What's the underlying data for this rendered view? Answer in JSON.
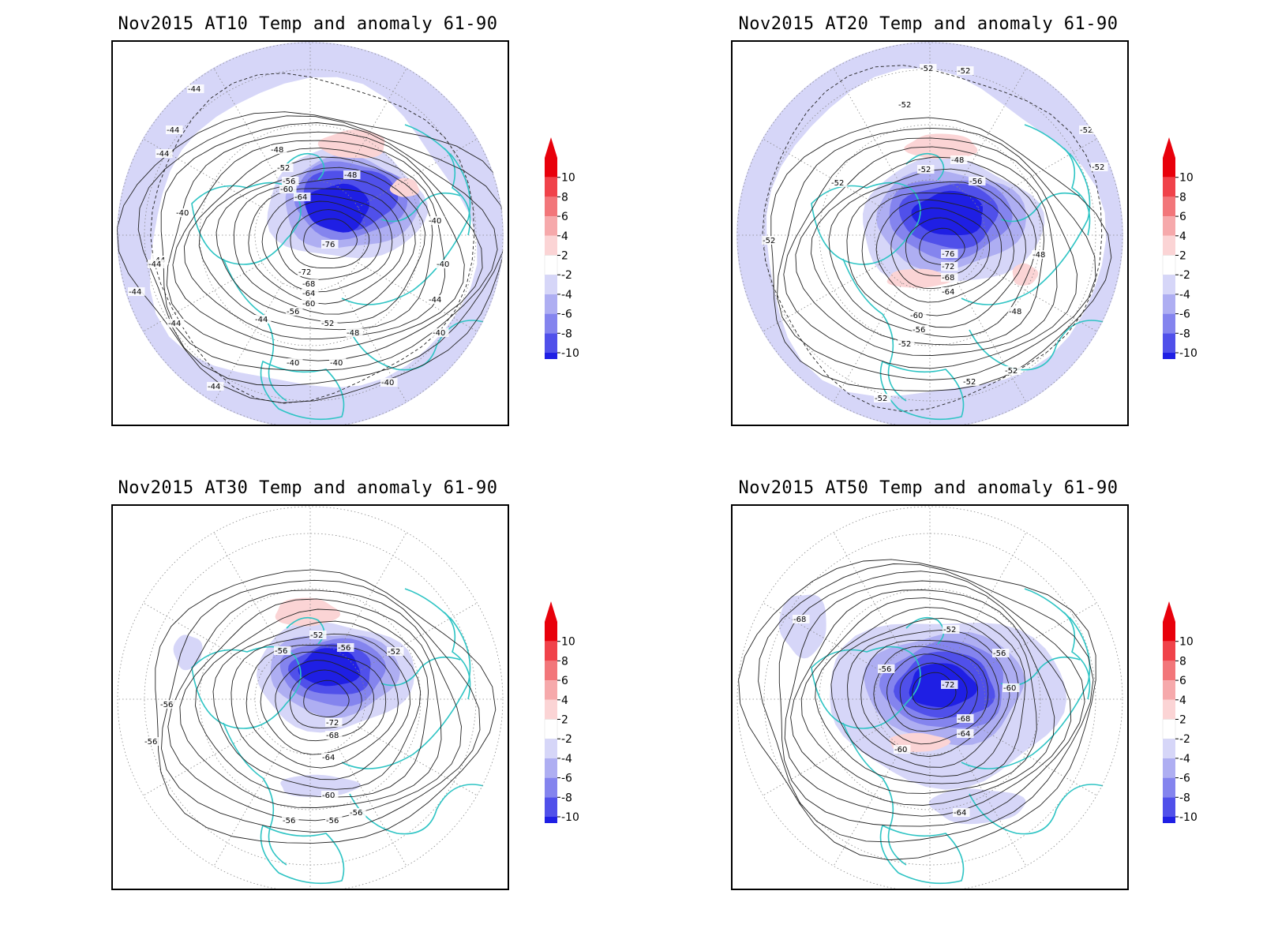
{
  "figure": {
    "panels": [
      {
        "title": "Nov2015 AT10 Temp and anomaly 61-90",
        "contour_labels": [
          "-44",
          "-44",
          "-44",
          "-44",
          "-48",
          "-52",
          "-56",
          "-60",
          "-64",
          "-48",
          "-76",
          "-40",
          "-40",
          "-40",
          "-72",
          "-68",
          "-64",
          "-60",
          "-56",
          "-52",
          "-48",
          "-44",
          "-40",
          "-40",
          "-40",
          "-40",
          "-44",
          "-44",
          "-44",
          "-44",
          "-44"
        ]
      },
      {
        "title": "Nov2015 AT20 Temp and anomaly 61-90",
        "contour_labels": [
          "-52",
          "-52",
          "-52",
          "-52",
          "-52",
          "-48",
          "-52",
          "-56",
          "-52",
          "-52",
          "-76",
          "-72",
          "-68",
          "-64",
          "-60",
          "-56",
          "-52",
          "-48",
          "-48",
          "-52",
          "-52",
          "-52"
        ]
      },
      {
        "title": "Nov2015 AT30 Temp and anomaly 61-90",
        "contour_labels": [
          "-52",
          "-56",
          "-56",
          "-52",
          "-56",
          "-72",
          "-68",
          "-64",
          "-60",
          "-56",
          "-56",
          "-56",
          "-56"
        ]
      },
      {
        "title": "Nov2015 AT50 Temp and anomaly 61-90",
        "contour_labels": [
          "-68",
          "-52",
          "-56",
          "-56",
          "-72",
          "-60",
          "-68",
          "-64",
          "-60",
          "-64"
        ]
      }
    ],
    "colorbar": {
      "labels": [
        "10",
        "8",
        "6",
        "4",
        "2",
        "-2",
        "-4",
        "-6",
        "-8",
        "-10"
      ],
      "colors": [
        "#e8000b",
        "#f0424a",
        "#f2767a",
        "#f6a9ab",
        "#fbd4d5",
        "#ffffff",
        "#d6d6f8",
        "#aeaef2",
        "#8484ee",
        "#5050ea",
        "#1f1fe4"
      ],
      "arrow_top": "#e8000b",
      "arrow_bottom": "#1f1fe4"
    },
    "style": {
      "coast_color": "#2ec4c4",
      "contour_color": "#222222",
      "grid_color": "#888888"
    }
  }
}
